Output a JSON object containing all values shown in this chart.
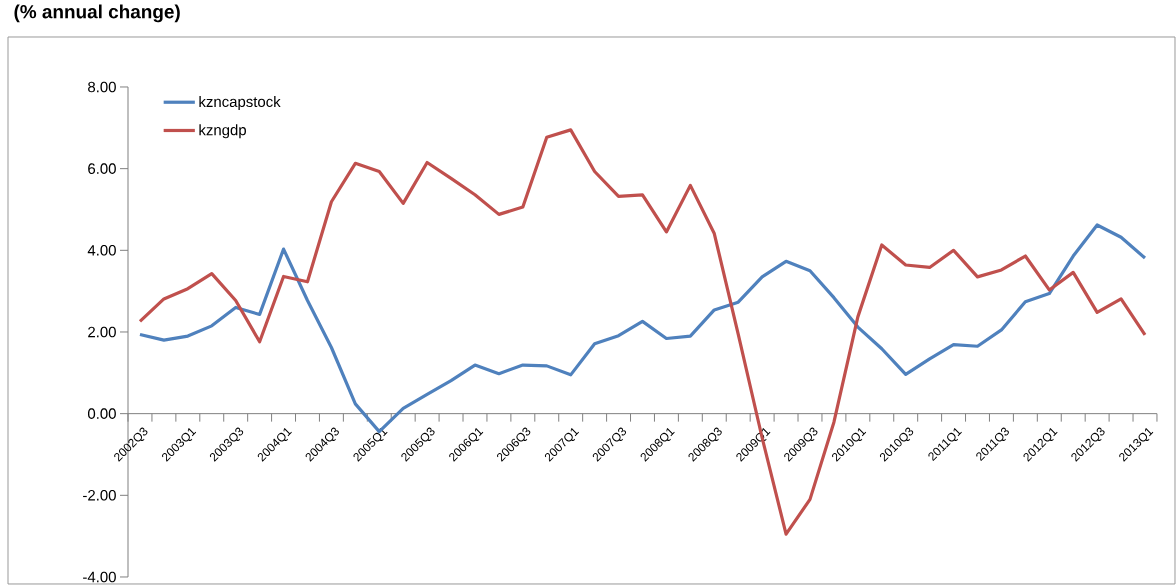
{
  "chart_data": {
    "type": "line",
    "title": "(% annual change)",
    "categories": [
      "2002Q3",
      null,
      "2003Q1",
      null,
      "2003Q3",
      null,
      "2004Q1",
      null,
      "2004Q3",
      null,
      "2005Q1",
      null,
      "2005Q3",
      null,
      "2006Q1",
      null,
      "2006Q3",
      null,
      "2007Q1",
      null,
      "2007Q3",
      null,
      "2008Q1",
      null,
      "2008Q3",
      null,
      "2009Q1",
      null,
      "2009Q3",
      null,
      "2010Q1",
      null,
      "2010Q3",
      null,
      "2011Q1",
      null,
      "2011Q3",
      null,
      "2012Q1",
      null,
      "2012Q3",
      null,
      "2013Q1"
    ],
    "series": [
      {
        "name": "kzncapstock",
        "color": "#4f81bd",
        "values": [
          1.94,
          1.8,
          1.9,
          2.15,
          2.6,
          2.43,
          4.03,
          2.77,
          1.62,
          0.24,
          -0.44,
          0.13,
          0.47,
          0.81,
          1.19,
          0.98,
          1.19,
          1.17,
          0.95,
          1.71,
          1.91,
          2.26,
          1.84,
          1.9,
          2.54,
          2.73,
          3.35,
          3.73,
          3.5,
          2.84,
          2.12,
          1.59,
          0.96,
          1.34,
          1.69,
          1.65,
          2.05,
          2.74,
          2.94,
          3.86,
          4.62,
          4.32,
          3.81
        ]
      },
      {
        "name": "kzngdp",
        "color": "#c0504d",
        "values": [
          2.26,
          2.81,
          3.06,
          3.43,
          2.77,
          1.76,
          3.36,
          3.23,
          5.19,
          6.13,
          5.93,
          5.15,
          6.15,
          5.76,
          5.36,
          4.88,
          5.06,
          6.77,
          6.95,
          5.93,
          5.32,
          5.36,
          4.45,
          5.59,
          4.41,
          1.95,
          -0.59,
          -2.95,
          -2.1,
          -0.21,
          2.37,
          4.13,
          3.64,
          3.58,
          4.0,
          3.35,
          3.52,
          3.86,
          3.03,
          3.46,
          2.48,
          2.81,
          1.93
        ]
      }
    ],
    "ylim": [
      -4,
      8
    ],
    "yticks": [
      {
        "value": -4,
        "label": "-4.00"
      },
      {
        "value": -2,
        "label": "-2.00"
      },
      {
        "value": 0,
        "label": "0.00"
      },
      {
        "value": 2,
        "label": "2.00"
      },
      {
        "value": 4,
        "label": "4.00"
      },
      {
        "value": 6,
        "label": "6.00"
      },
      {
        "value": 8,
        "label": "8.00"
      }
    ],
    "legend": "top left",
    "grid": false,
    "marker": "none",
    "line_style": "solid"
  }
}
